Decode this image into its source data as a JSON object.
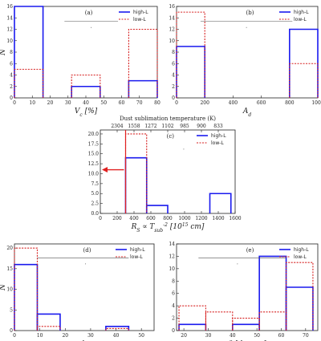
{
  "colors": {
    "high": "#1a1aee",
    "low": "#d62020",
    "sig": "#555555",
    "sublim": "#e02020"
  },
  "legend": {
    "high": "high-L",
    "low": "low-L"
  },
  "chart_data": [
    {
      "id": "a",
      "type": "bar",
      "panel_label": "(a)",
      "xlabel": "V_c [%]",
      "ylabel": "N",
      "xlim": [
        0,
        80
      ],
      "ylim": [
        0,
        16
      ],
      "xticks": [
        "0",
        "10",
        "20",
        "30",
        "40",
        "50",
        "60",
        "70",
        "80"
      ],
      "yticks": [
        "0",
        "2",
        "4",
        "6",
        "8",
        "10",
        "12",
        "14",
        "16"
      ],
      "bins": [
        [
          0,
          16
        ],
        [
          16,
          32
        ],
        [
          32,
          48
        ],
        [
          48,
          64
        ],
        [
          64,
          80
        ]
      ],
      "series": [
        {
          "name": "high-L",
          "values": [
            16,
            0,
            2,
            0,
            3
          ]
        },
        {
          "name": "low-L",
          "values": [
            5,
            0,
            4,
            0,
            12
          ]
        }
      ],
      "sig_line": [
        28,
        58
      ],
      "sig_tick": [
        43,
        43
      ]
    },
    {
      "id": "b",
      "type": "bar",
      "panel_label": "(b)",
      "xlabel": "A_d",
      "ylabel": "",
      "xlim": [
        0,
        1000
      ],
      "ylim": [
        0,
        16
      ],
      "xticks": [
        "0",
        "200",
        "400",
        "600",
        "800",
        "1000"
      ],
      "yticks": [
        "0",
        "2",
        "4",
        "6",
        "8",
        "10",
        "12",
        "14",
        "16"
      ],
      "bins": [
        [
          0,
          200
        ],
        [
          200,
          800
        ],
        [
          800,
          1000
        ]
      ],
      "series": [
        {
          "name": "high-L",
          "values": [
            9,
            0,
            12
          ]
        },
        {
          "name": "low-L",
          "values": [
            15,
            0,
            6
          ]
        }
      ],
      "sig_line": [
        170,
        820
      ],
      "sig_tick": [
        495,
        495
      ]
    },
    {
      "id": "c",
      "type": "bar",
      "panel_label": "(c)",
      "title": "Dust sublimation temperature (K)",
      "top_ticks": [
        "2304",
        "1558",
        "1272",
        "1102",
        "985",
        "900",
        "833"
      ],
      "top_tick_positions": [
        200,
        400,
        600,
        800,
        1000,
        1200,
        1400
      ],
      "xlabel": "R_S ∝ T_sub^-2 [10^15 cm]",
      "ylabel": "",
      "xlim": [
        0,
        1600
      ],
      "ylim": [
        0,
        21
      ],
      "xticks": [
        "0",
        "200",
        "400",
        "600",
        "800",
        "1000",
        "1200",
        "1400",
        "1600"
      ],
      "yticks": [
        "0.0",
        "2.5",
        "5.0",
        "7.5",
        "10.0",
        "12.5",
        "15.0",
        "17.5",
        "20.0"
      ],
      "bins": [
        [
          300,
          550
        ],
        [
          550,
          800
        ],
        [
          800,
          1300
        ],
        [
          1300,
          1550
        ]
      ],
      "series": [
        {
          "name": "high-L",
          "values": [
            14,
            2,
            0,
            5
          ]
        },
        {
          "name": "low-L",
          "values": [
            20,
            0,
            0,
            0
          ]
        }
      ],
      "vline": 300,
      "arrow_y": 11,
      "sig_tick": [
        990,
        990
      ]
    },
    {
      "id": "d",
      "type": "bar",
      "panel_label": "(d)",
      "xlabel": "A_c",
      "ylabel": "N",
      "xlim": [
        0,
        55
      ],
      "ylim": [
        0,
        21
      ],
      "xticks": [
        "0",
        "10",
        "20",
        "30",
        "40",
        "50"
      ],
      "yticks": [
        "0",
        "5",
        "10",
        "15",
        "20"
      ],
      "bins": [
        [
          0,
          9
        ],
        [
          9,
          18
        ],
        [
          18,
          36
        ],
        [
          36,
          45
        ]
      ],
      "series": [
        {
          "name": "high-L",
          "values": [
            16,
            4,
            0,
            1
          ]
        },
        {
          "name": "low-L",
          "values": [
            20,
            1,
            0,
            0.5
          ]
        }
      ],
      "sig_line": [
        9,
        45
      ],
      "sig_tick": [
        28,
        28
      ]
    },
    {
      "id": "e",
      "type": "bar",
      "panel_label": "(e)",
      "xlabel": "θ [degree]",
      "ylabel": "",
      "xlim": [
        17,
        75
      ],
      "ylim": [
        0,
        14
      ],
      "xticks": [
        "20",
        "30",
        "40",
        "50",
        "60",
        "70"
      ],
      "yticks": [
        "0",
        "2",
        "4",
        "6",
        "8",
        "10",
        "12",
        "14"
      ],
      "bins": [
        [
          18,
          29
        ],
        [
          29,
          40
        ],
        [
          40,
          51
        ],
        [
          51,
          62
        ],
        [
          62,
          73
        ]
      ],
      "series": [
        {
          "name": "high-L",
          "values": [
            1,
            0,
            1,
            12,
            7
          ]
        },
        {
          "name": "low-L",
          "values": [
            4,
            3,
            2,
            3,
            11
          ]
        }
      ],
      "sig_line": [
        26,
        62
      ],
      "sig_tick": [
        42,
        42
      ]
    }
  ]
}
